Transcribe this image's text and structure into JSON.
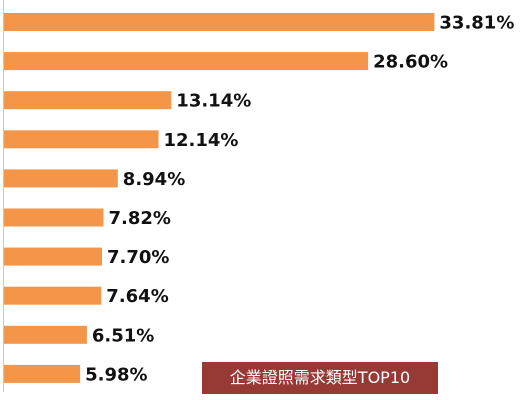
{
  "chart_data": {
    "type": "bar",
    "orientation": "horizontal",
    "title": "企業證照需求類型TOP10",
    "categories": [],
    "values": [
      33.81,
      28.6,
      13.14,
      12.14,
      8.94,
      7.82,
      7.7,
      7.64,
      6.51,
      5.98
    ],
    "labels": [
      "33.81%",
      "28.60%",
      "13.14%",
      "12.14%",
      "8.94%",
      "7.82%",
      "7.70%",
      "7.64%",
      "6.51%",
      "5.98%"
    ],
    "xlim": [
      0,
      34
    ],
    "grid": false,
    "legend": "none",
    "bar_color": "#f4964a",
    "title_bg_color": "#973a36"
  }
}
